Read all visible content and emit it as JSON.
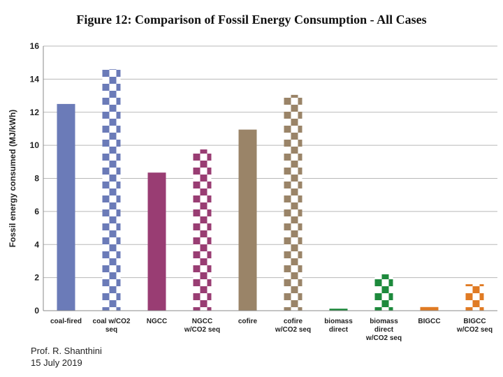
{
  "chart_data": {
    "type": "bar",
    "title": "Figure 12:  Comparison of Fossil Energy Consumption  - All Cases",
    "xlabel": "",
    "ylabel": "Fossil energy consumed (MJ/kWh)",
    "ylim": [
      0,
      16
    ],
    "yticks": [
      0,
      2,
      4,
      6,
      8,
      10,
      12,
      14,
      16
    ],
    "grid": true,
    "categories": [
      [
        "coal-fired"
      ],
      [
        "coal w/CO2",
        "seq"
      ],
      [
        "NGCC"
      ],
      [
        "NGCC",
        "w/CO2 seq"
      ],
      [
        "cofire"
      ],
      [
        "cofire",
        "w/CO2 seq"
      ],
      [
        "biomass",
        "direct"
      ],
      [
        "biomass",
        "direct",
        "w/CO2 seq"
      ],
      [
        "BIGCC"
      ],
      [
        "BIGCC",
        "w/CO2 seq"
      ]
    ],
    "values": [
      12.5,
      14.6,
      8.35,
      9.75,
      10.95,
      13.05,
      0.12,
      2.2,
      0.22,
      1.6
    ],
    "patterns": [
      "solid",
      "checker",
      "solid",
      "checker",
      "solid",
      "checker",
      "solid",
      "checker",
      "solid",
      "checker"
    ],
    "colors": [
      "#6b7bb8",
      "#6b7bb8",
      "#993d73",
      "#993d73",
      "#9a8468",
      "#9a8468",
      "#1d8a3c",
      "#1d8a3c",
      "#e07b24",
      "#e07b24"
    ]
  },
  "footer": {
    "author": "Prof. R. Shanthini",
    "date": "15 July 2019"
  }
}
